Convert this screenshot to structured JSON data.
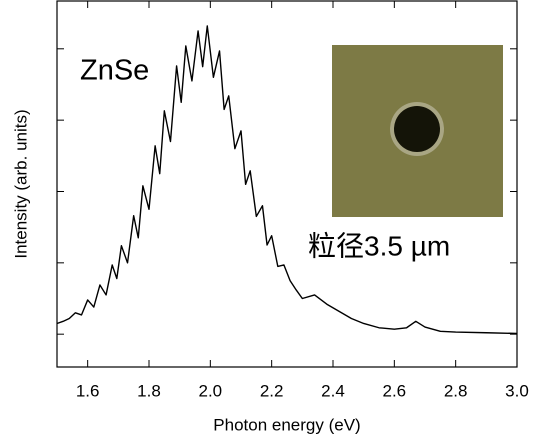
{
  "chart_data": {
    "type": "line",
    "xlabel": "Photon energy (eV)",
    "ylabel": "Intensity (arb. units)",
    "annotations": [
      "ZnSe",
      "粒径3.5 µm"
    ],
    "color": "#000000",
    "x": [
      1.5,
      1.52,
      1.54,
      1.56,
      1.58,
      1.6,
      1.62,
      1.64,
      1.66,
      1.68,
      1.695,
      1.71,
      1.73,
      1.75,
      1.765,
      1.78,
      1.8,
      1.82,
      1.835,
      1.85,
      1.87,
      1.89,
      1.905,
      1.92,
      1.94,
      1.96,
      1.975,
      1.99,
      2.01,
      2.03,
      2.045,
      2.06,
      2.08,
      2.1,
      2.115,
      2.13,
      2.15,
      2.17,
      2.185,
      2.2,
      2.22,
      2.24,
      2.26,
      2.28,
      2.3,
      2.34,
      2.38,
      2.42,
      2.46,
      2.5,
      2.55,
      2.6,
      2.64,
      2.67,
      2.7,
      2.75,
      2.8,
      2.9,
      3.0
    ],
    "values": [
      1.15,
      1.18,
      1.22,
      1.3,
      1.27,
      1.48,
      1.38,
      1.69,
      1.55,
      1.97,
      1.78,
      2.24,
      2.0,
      2.66,
      2.35,
      3.08,
      2.75,
      3.64,
      3.25,
      4.13,
      3.7,
      4.76,
      4.25,
      5.04,
      4.55,
      5.25,
      4.75,
      5.32,
      4.6,
      4.97,
      4.15,
      4.34,
      3.6,
      3.85,
      3.1,
      3.29,
      2.65,
      2.8,
      2.25,
      2.38,
      1.95,
      1.97,
      1.75,
      1.62,
      1.5,
      1.55,
      1.42,
      1.32,
      1.22,
      1.15,
      1.09,
      1.07,
      1.09,
      1.18,
      1.1,
      1.04,
      1.03,
      1.02,
      1.01
    ],
    "xlim": [
      1.5,
      3.0
    ],
    "xticks": [
      1.6,
      1.8,
      {
        "value": 2,
        "label": "2.0"
      },
      2.2,
      2.4,
      2.6,
      2.8,
      {
        "value": 3,
        "label": "3.0"
      }
    ],
    "ylim": [
      0.54,
      5.67
    ],
    "yticks": [
      1,
      2,
      3,
      4,
      5
    ]
  }
}
